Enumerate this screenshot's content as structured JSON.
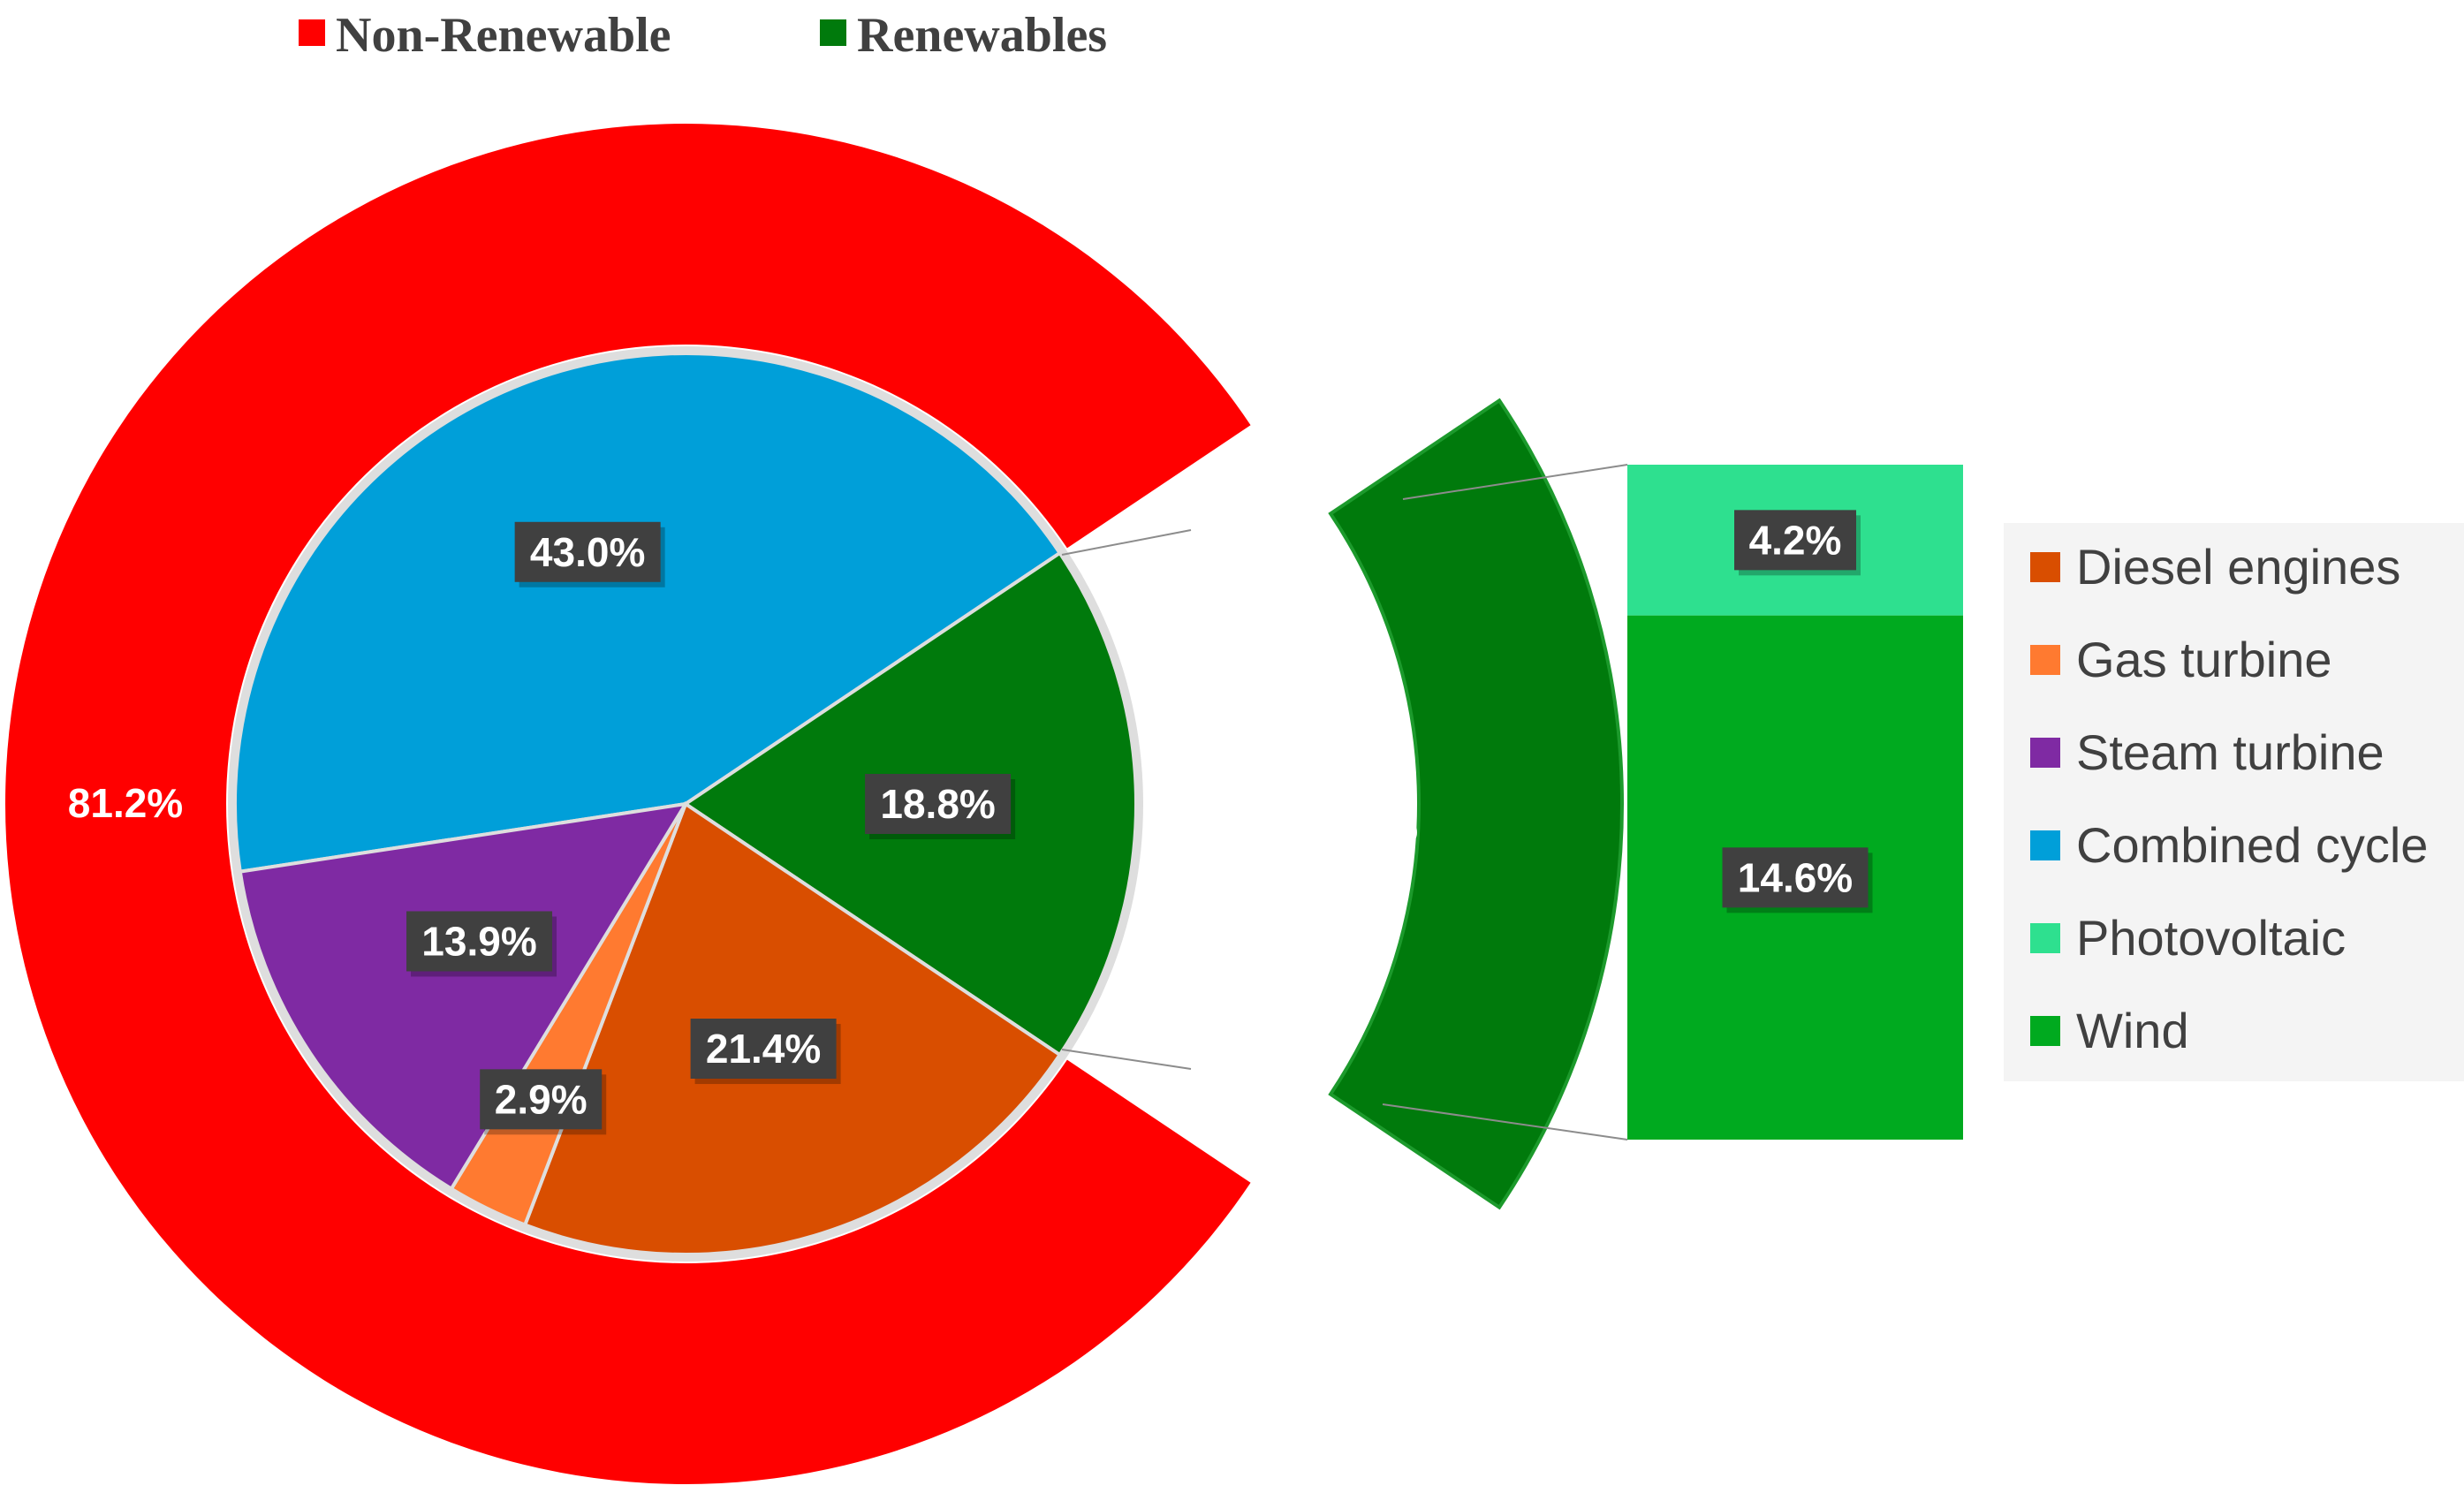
{
  "chart_data": {
    "type": "pie",
    "title": "",
    "top_legend": [
      {
        "name": "Non-Renewable",
        "color": "#ff0000"
      },
      {
        "name": "Renewables",
        "color": "#007a0c"
      }
    ],
    "outer_ring": {
      "categories": [
        "Non-Renewable",
        "Renewables"
      ],
      "values": [
        81.2,
        18.8
      ],
      "labels": [
        "81.2%",
        "18.8%"
      ],
      "colors": [
        "#ff0000",
        "#007a0c"
      ]
    },
    "inner_pie": {
      "categories": [
        "Combined cycle",
        "Renewables",
        "Diesel engines",
        "Gas turbine",
        "Steam turbine"
      ],
      "values": [
        43.0,
        18.8,
        21.4,
        2.9,
        13.9
      ],
      "labels": [
        "43.0%",
        "18.8%",
        "21.4%",
        "2.9%",
        "13.9%"
      ],
      "colors": [
        "#009fd9",
        "#007a0c",
        "#d94e00",
        "#ff7a30",
        "#7f2aa3"
      ]
    },
    "breakdown_bar": {
      "categories": [
        "Photovoltaic",
        "Wind"
      ],
      "values": [
        4.2,
        14.6
      ],
      "labels": [
        "4.2%",
        "14.6%"
      ],
      "colors": [
        "#2ee08f",
        "#00aa1f"
      ]
    },
    "side_legend": [
      {
        "name": "Diesel engines",
        "color": "#d94e00"
      },
      {
        "name": "Gas turbine",
        "color": "#ff7a30"
      },
      {
        "name": "Steam turbine",
        "color": "#7f2aa3"
      },
      {
        "name": "Combined cycle",
        "color": "#009fd9"
      },
      {
        "name": "Photovoltaic",
        "color": "#2ee08f"
      },
      {
        "name": "Wind",
        "color": "#00aa1f"
      }
    ]
  }
}
